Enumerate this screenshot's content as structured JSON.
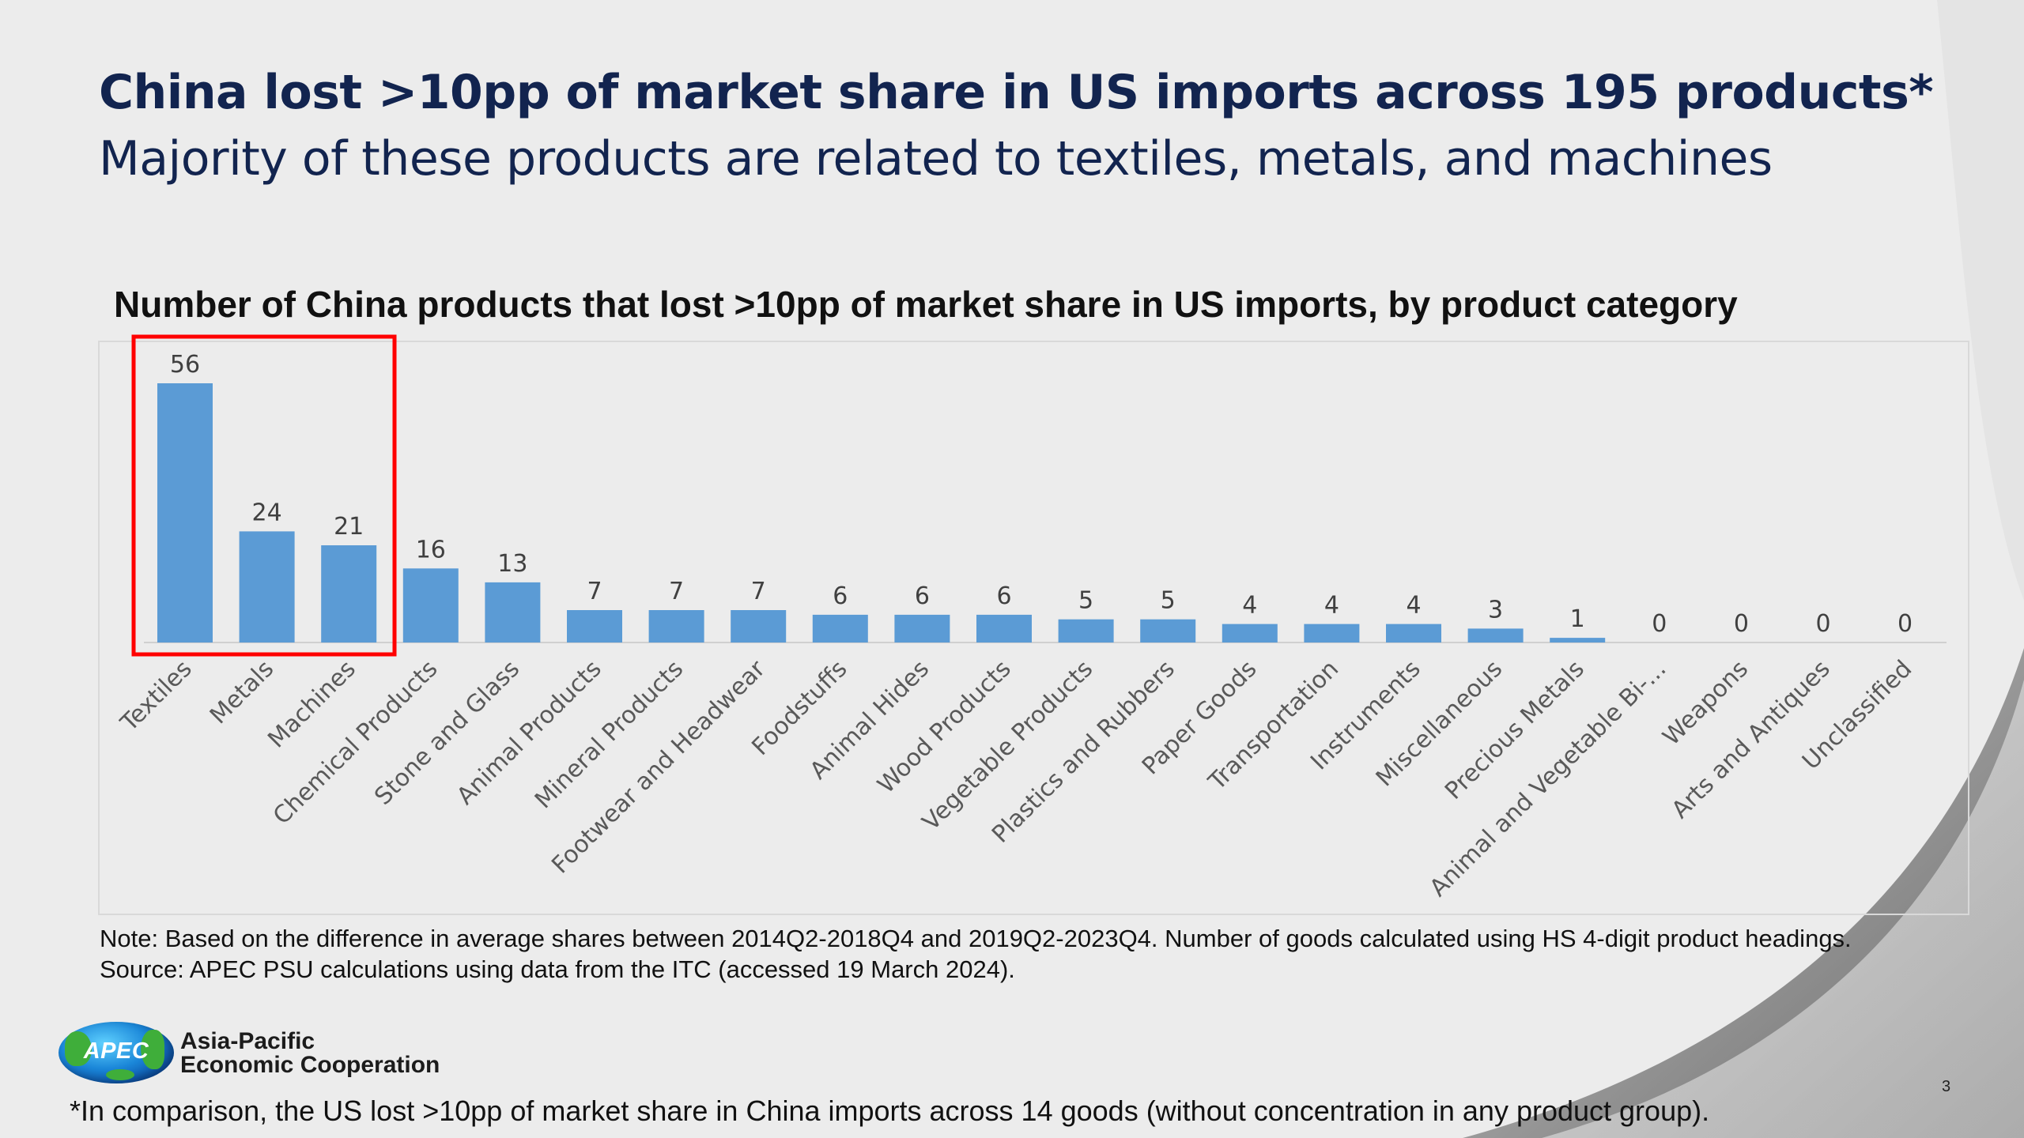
{
  "headline": "China lost >10pp of market share in US imports across 195 products*",
  "subheadline": "Majority of these products are related to textiles, metals, and machines",
  "chart_data": {
    "type": "bar",
    "title": "Number of China products that lost >10pp of market share in US imports, by product category",
    "xlabel": "",
    "ylabel": "",
    "categories": [
      "Textiles",
      "Metals",
      "Machines",
      "Chemical Products",
      "Stone and Glass",
      "Animal Products",
      "Mineral Products",
      "Footwear and Headwear",
      "Foodstuffs",
      "Animal Hides",
      "Wood Products",
      "Vegetable Products",
      "Plastics and Rubbers",
      "Paper Goods",
      "Transportation",
      "Instruments",
      "Miscellaneous",
      "Precious Metals",
      "Animal and Vegetable Bi-...",
      "Weapons",
      "Arts and Antiques",
      "Unclassified"
    ],
    "values": [
      56,
      24,
      21,
      16,
      13,
      7,
      7,
      7,
      6,
      6,
      6,
      5,
      5,
      4,
      4,
      4,
      3,
      1,
      0,
      0,
      0,
      0
    ],
    "ylim": [
      0,
      56
    ],
    "grid": false,
    "legend": "none",
    "bar_color": "#5b9bd5",
    "highlighted_categories": [
      "Textiles",
      "Metals",
      "Machines"
    ],
    "highlight_color": "#ff0000"
  },
  "notes": {
    "line1": "Note: Based on the difference in average shares between 2014Q2-2018Q4 and 2019Q2-2023Q4. Number of goods calculated using HS 4-digit product headings.",
    "line2": "Source: APEC PSU calculations using data from the ITC (accessed 19 March 2024)."
  },
  "logo": {
    "acronym": "APEC",
    "name_line1": "Asia-Pacific",
    "name_line2": "Economic Cooperation"
  },
  "footnote": "*In comparison, the US lost >10pp of market share in China imports across 14 goods (without concentration in any product group).",
  "page_number": "3"
}
